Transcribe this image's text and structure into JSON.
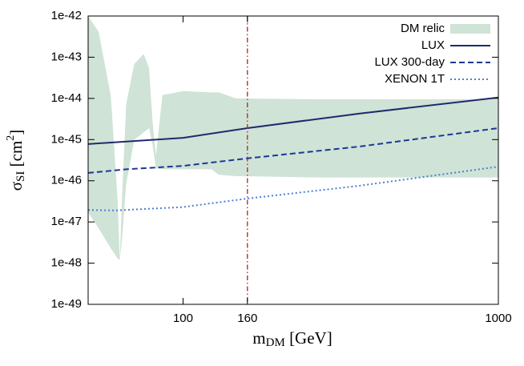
{
  "chart_data": {
    "type": "line",
    "x_label": {
      "main": "m",
      "sub": "DM",
      "rest": " [GeV]"
    },
    "y_label": {
      "main": "σ",
      "sub": "SI",
      "rest": " [cm",
      "sup": "2",
      "end": "]"
    },
    "xlim": [
      50,
      1000
    ],
    "xticks": [
      100,
      160,
      1000
    ],
    "xlog": true,
    "ylim": [
      1e-49,
      1e-42
    ],
    "yticks": [
      1e-42,
      1e-43,
      1e-44,
      1e-45,
      1e-46,
      1e-47,
      1e-48,
      1e-49
    ],
    "ylog": true,
    "vline": 160,
    "vline_color": "#b22222",
    "legend": "top-right",
    "series": [
      {
        "name": "DM relic",
        "kind": "band",
        "color": "#cfe3d6",
        "x": [
          50,
          54,
          59,
          62,
          63,
          64,
          66,
          70,
          75,
          78,
          80,
          82,
          86,
          100,
          123,
          130,
          147,
          271,
          1000
        ],
        "upper": [
          1e-42,
          4.1e-43,
          1.15e-44,
          3.4e-47,
          1.2e-48,
          3.4e-47,
          7.2e-45,
          6.8e-44,
          1.2e-43,
          5.5e-44,
          2.9e-45,
          4e-46,
          1.2e-44,
          1.5e-44,
          1.4e-44,
          1.4e-44,
          1e-44,
          9.5e-45,
          9.5e-45
        ],
        "lower": [
          1.7e-47,
          7e-48,
          2.3e-48,
          1.3e-48,
          1.2e-48,
          3.6e-48,
          8.3e-47,
          9.8e-46,
          1.5e-45,
          1.9e-45,
          7.8e-46,
          2e-46,
          1.9e-46,
          1.9e-46,
          1.9e-46,
          1.4e-46,
          1.3e-46,
          1.2e-46,
          1.2e-46
        ]
      },
      {
        "name": "LUX",
        "kind": "line",
        "dash": "solid",
        "color": "#1f2a6b",
        "x": [
          50,
          100,
          160,
          364,
          1000
        ],
        "values": [
          7.8e-46,
          1.1e-45,
          1.9e-45,
          4.3e-45,
          1.05e-44
        ]
      },
      {
        "name": "LUX 300-day",
        "kind": "line",
        "dash": "dashed",
        "color": "#1d3796",
        "x": [
          50,
          66,
          100,
          160,
          364,
          1000
        ],
        "values": [
          1.55e-46,
          1.9e-46,
          2.3e-46,
          3.5e-46,
          6.8e-46,
          1.9e-45
        ]
      },
      {
        "name": "XENON 1T",
        "kind": "line",
        "dash": "dotted",
        "color": "#4a7fd4",
        "x": [
          50,
          61,
          100,
          160,
          364,
          1000
        ],
        "values": [
          1.95e-47,
          1.9e-47,
          2.3e-47,
          3.7e-47,
          7.6e-47,
          2.2e-46
        ]
      }
    ]
  }
}
